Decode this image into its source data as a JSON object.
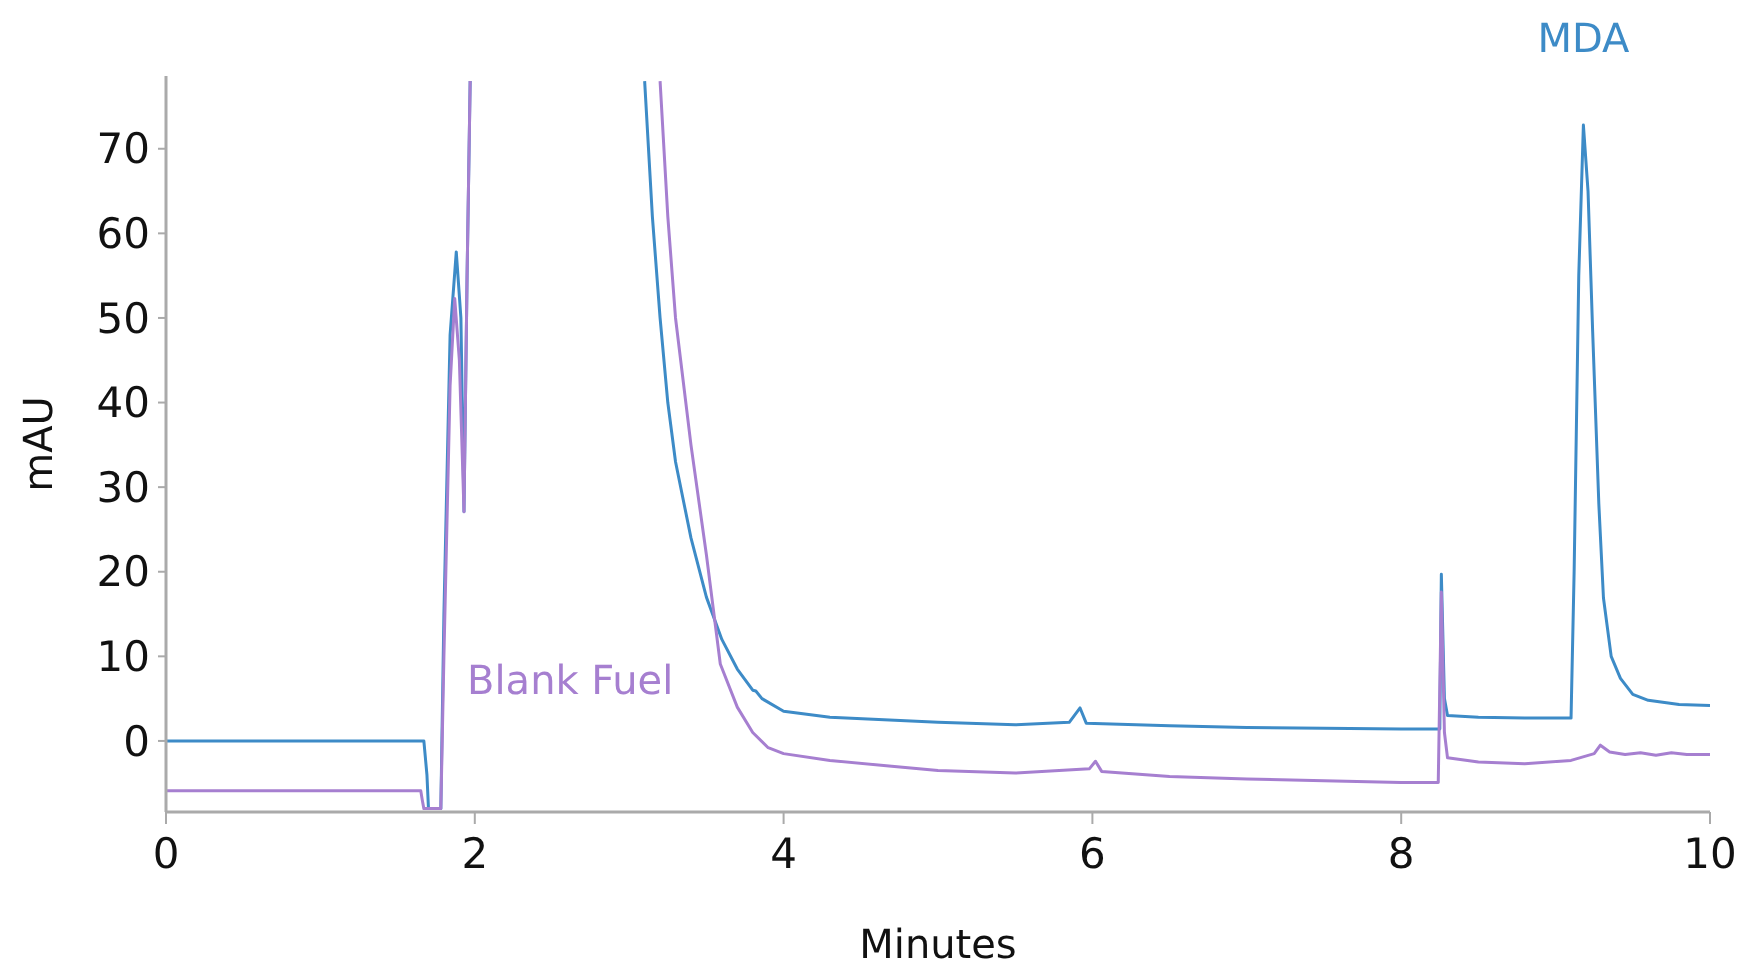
{
  "chart_data": {
    "type": "line",
    "xlabel": "Minutes",
    "ylabel": "mAU",
    "xlim": [
      0,
      10
    ],
    "ylim": [
      -8.4,
      78.6
    ],
    "xticks": [
      0,
      2,
      4,
      6,
      8,
      10
    ],
    "yticks": [
      0,
      10,
      20,
      30,
      40,
      50,
      60,
      70
    ],
    "grid": false,
    "legend": false,
    "marker": "none",
    "line_style": "solid",
    "series": [
      {
        "name": "MDA",
        "color": "#3d8bc7",
        "x": [
          0,
          0.5,
          1,
          1.5,
          1.67,
          1.69,
          1.7,
          1.78,
          1.8,
          1.84,
          1.88,
          1.91,
          1.93,
          1.95,
          1.97,
          1.98,
          3.1,
          3.15,
          3.2,
          3.25,
          3.3,
          3.4,
          3.5,
          3.6,
          3.7,
          3.8,
          3.82,
          3.86,
          4.0,
          4.3,
          5,
          5.5,
          5.85,
          5.92,
          5.96,
          6.5,
          7,
          7.5,
          8.0,
          8.25,
          8.26,
          8.28,
          8.3,
          8.5,
          8.8,
          9.1,
          9.12,
          9.15,
          9.18,
          9.21,
          9.24,
          9.28,
          9.31,
          9.36,
          9.42,
          9.5,
          9.6,
          9.8,
          10
        ],
        "values": [
          0,
          0,
          0,
          0,
          0,
          -4,
          -8,
          -8,
          15,
          48,
          57.8,
          50,
          27.1,
          55,
          78,
          null,
          78,
          62,
          50,
          40,
          33,
          24,
          17,
          12,
          8.5,
          6,
          5.9,
          5.0,
          3.5,
          2.8,
          2.2,
          1.9,
          2.2,
          3.9,
          2.1,
          1.8,
          1.6,
          1.5,
          1.4,
          1.4,
          19.7,
          5,
          3.0,
          2.8,
          2.7,
          2.7,
          20,
          55,
          72.8,
          65,
          48.4,
          28,
          16.9,
          10,
          7.4,
          5.5,
          4.8,
          4.3,
          4.2
        ]
      },
      {
        "name": "Blank Fuel",
        "color": "#a67fd0",
        "x": [
          0,
          0.5,
          1,
          1.5,
          1.65,
          1.66,
          1.67,
          1.78,
          1.8,
          1.84,
          1.87,
          1.9,
          1.93,
          1.95,
          1.97,
          1.98,
          3.2,
          3.25,
          3.3,
          3.4,
          3.5,
          3.59,
          3.7,
          3.8,
          3.9,
          4.0,
          4.3,
          4.7,
          5,
          5.5,
          5.98,
          6.02,
          6.06,
          6.5,
          7,
          7.5,
          8.0,
          8.24,
          8.26,
          8.28,
          8.3,
          8.5,
          8.8,
          9.1,
          9.25,
          9.29,
          9.35,
          9.45,
          9.55,
          9.65,
          9.75,
          9.85,
          10
        ],
        "values": [
          -5.9,
          -5.9,
          -5.9,
          -5.9,
          -5.9,
          -7,
          -8,
          -8,
          10,
          42,
          52.3,
          45,
          27.1,
          55,
          78,
          null,
          78,
          62,
          50,
          35,
          22,
          9.1,
          4,
          1,
          -0.8,
          -1.5,
          -2.3,
          -3,
          -3.5,
          -3.8,
          -3.3,
          -2.4,
          -3.6,
          -4.2,
          -4.5,
          -4.7,
          -4.9,
          -4.9,
          17.6,
          1,
          -2.0,
          -2.5,
          -2.7,
          -2.3,
          -1.5,
          -0.5,
          -1.3,
          -1.6,
          -1.4,
          -1.7,
          -1.4,
          -1.6,
          -1.6
        ]
      }
    ]
  }
}
